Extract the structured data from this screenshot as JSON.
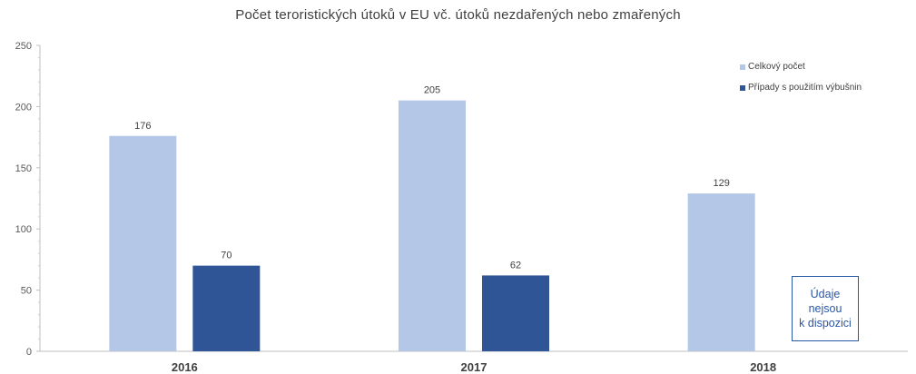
{
  "chart_data": {
    "type": "bar",
    "title": "Počet teroristických útoků v EU vč. útoků nezdařených nebo zmařených",
    "categories": [
      "2016",
      "2017",
      "2018"
    ],
    "series": [
      {
        "name": "Celkový počet",
        "values": [
          176,
          205,
          129
        ],
        "color": "#b4c7e7"
      },
      {
        "name": "Případy s použitím výbušnin",
        "values": [
          70,
          62,
          null
        ],
        "color": "#2f5597"
      }
    ],
    "ylim": [
      0,
      250
    ],
    "yticks": [
      0,
      50,
      100,
      150,
      200,
      250
    ],
    "grid": false,
    "legend_position": "top-right",
    "annotation": {
      "lines": [
        "Údaje",
        "nejsou",
        "k dispozici"
      ],
      "color": "#2b57a4"
    }
  }
}
